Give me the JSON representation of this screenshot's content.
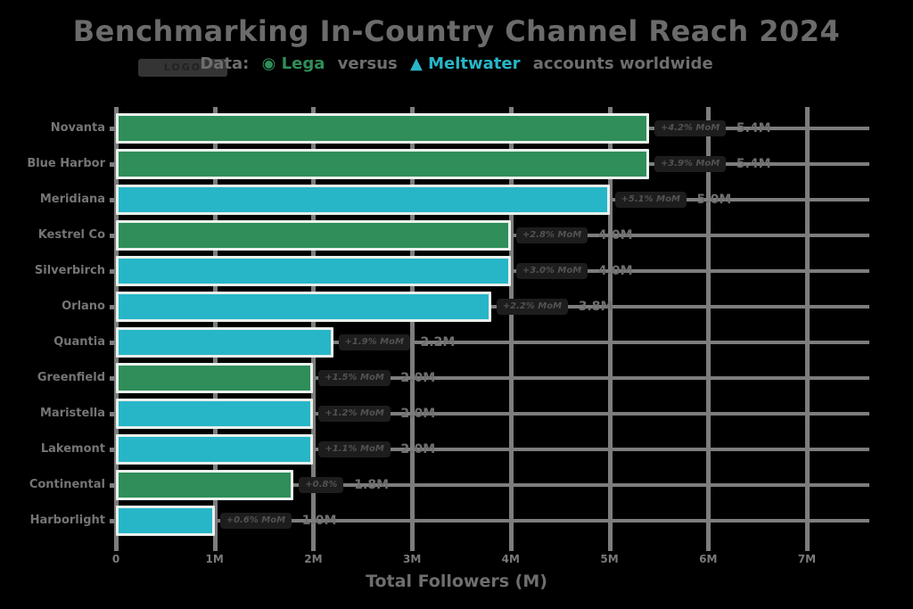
{
  "title": "Benchmarking In-Country Channel Reach 2024",
  "subtitle": {
    "prefix": "Data:",
    "green_icon": "◉",
    "green_label": "Lega",
    "mid": "versus",
    "teal_icon": "▲",
    "teal_label": "Meltwater",
    "suffix": "accounts worldwide"
  },
  "logo_badge_label": "LOGO",
  "colors": {
    "green": "#2f8e59",
    "teal": "#27b6c8",
    "grid": "#7d7d7d",
    "text_gray": "#6e6e6e",
    "pill_bg": "#1d1d1d",
    "pill_text": "#525252",
    "bar_border": "#e9f1ec",
    "background": "#000000"
  },
  "chart_data": {
    "type": "bar",
    "orientation": "horizontal",
    "title": "Benchmarking In-Country Channel Reach 2024",
    "xlabel": "Total Followers (M)",
    "ylabel": "",
    "xlim": [
      0,
      7.6
    ],
    "grid": true,
    "x_ticks": [
      "0",
      "1M",
      "2M",
      "3M",
      "4M",
      "5M",
      "6M",
      "7M"
    ],
    "x_tick_values": [
      0,
      1,
      2,
      3,
      4,
      5,
      6,
      7
    ],
    "categories": [
      "Novanta",
      "Blue Harbor",
      "Meridiana",
      "Kestrel Co",
      "Silverbirch",
      "Orlano",
      "Quantia",
      "Greenfield",
      "Maristella",
      "Lakemont",
      "Continental",
      "Harborlight"
    ],
    "values": [
      5.4,
      5.4,
      5.0,
      4.0,
      4.0,
      3.8,
      2.2,
      2.0,
      2.0,
      2.0,
      1.8,
      1.0
    ],
    "value_labels": [
      "5.4M",
      "5.4M",
      "5.0M",
      "4.0M",
      "4.0M",
      "3.8M",
      "2.2M",
      "2.0M",
      "2.0M",
      "2.0M",
      "1.8M",
      "1.0M"
    ],
    "bar_colors": [
      "green",
      "green",
      "teal",
      "green",
      "teal",
      "teal",
      "teal",
      "green",
      "teal",
      "teal",
      "green",
      "teal"
    ],
    "annotations": [
      "+4.2% MoM",
      "+3.9% MoM",
      "+5.1% MoM",
      "+2.8% MoM",
      "+3.0% MoM",
      "+2.2% MoM",
      "+1.9% MoM",
      "+1.5% MoM",
      "+1.2% MoM",
      "+1.1% MoM",
      "+0.8%",
      "+0.6% MoM"
    ],
    "legend": [
      {
        "label": "Lega",
        "color": "green"
      },
      {
        "label": "Meltwater",
        "color": "teal"
      }
    ]
  }
}
